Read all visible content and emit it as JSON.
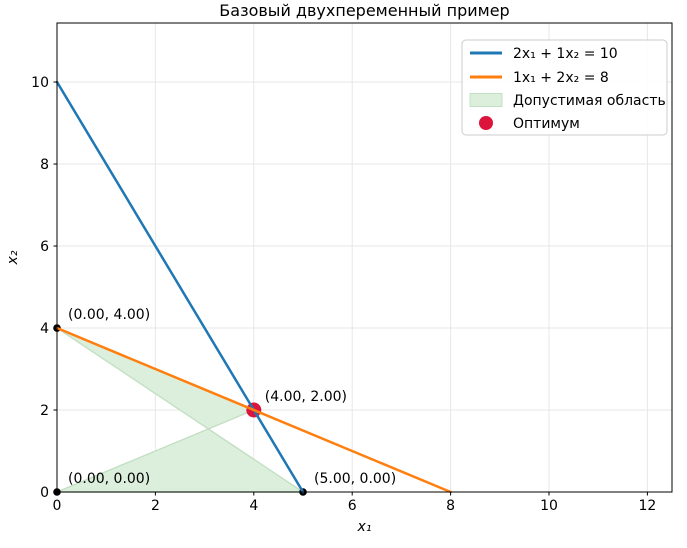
{
  "chart_data": {
    "type": "line",
    "title": "Базовый двухпеременный пример",
    "xlabel": "x₁",
    "ylabel": "x₂",
    "xlim": [
      0,
      12.5
    ],
    "ylim": [
      0,
      11.44
    ],
    "xticks": [
      0,
      2,
      4,
      6,
      8,
      10,
      12
    ],
    "yticks": [
      0,
      2,
      4,
      6,
      8,
      10
    ],
    "grid": true,
    "grid_color": "#e7e7e7",
    "background_color": "#ffffff",
    "legend": {
      "position": "upper right",
      "entries": [
        {
          "label": "2x₁ + 1x₂ = 10",
          "swatch": "line",
          "color": "#1f77b4"
        },
        {
          "label": "1x₁ + 2x₂ = 8",
          "swatch": "line",
          "color": "#ff7f0e"
        },
        {
          "label": "Допустимая область",
          "swatch": "patch",
          "fill": "#dcefdc",
          "edge": "#c3dfc3"
        },
        {
          "label": "Оптимум",
          "swatch": "dot",
          "color": "#dc143c"
        }
      ]
    },
    "series": [
      {
        "name": "2x₁ + 1x₂ = 10",
        "color": "#1f77b4",
        "linewidth": 2.5,
        "points": [
          [
            0,
            10
          ],
          [
            5,
            0
          ]
        ]
      },
      {
        "name": "1x₁ + 2x₂ = 8",
        "color": "#ff7f0e",
        "linewidth": 2.5,
        "points": [
          [
            0,
            4
          ],
          [
            8,
            0
          ]
        ]
      }
    ],
    "feasible_region": {
      "label": "Допустимая область",
      "fill": "#dcefdc",
      "edge": "#c3dfc3",
      "points": [
        [
          0,
          0
        ],
        [
          4,
          2
        ],
        [
          0,
          4
        ],
        [
          5,
          0
        ]
      ]
    },
    "optimum": {
      "label": "Оптимум",
      "x": 4,
      "y": 2,
      "color": "#dc143c"
    },
    "vertices": [
      {
        "x": 0,
        "y": 4,
        "label": "(0.00, 4.00)"
      },
      {
        "x": 4,
        "y": 2,
        "label": "(4.00, 2.00)"
      },
      {
        "x": 0,
        "y": 0,
        "label": "(0.00, 0.00)"
      },
      {
        "x": 5,
        "y": 0,
        "label": "(5.00, 0.00)"
      }
    ],
    "vertex_marker_color": "#000000"
  }
}
